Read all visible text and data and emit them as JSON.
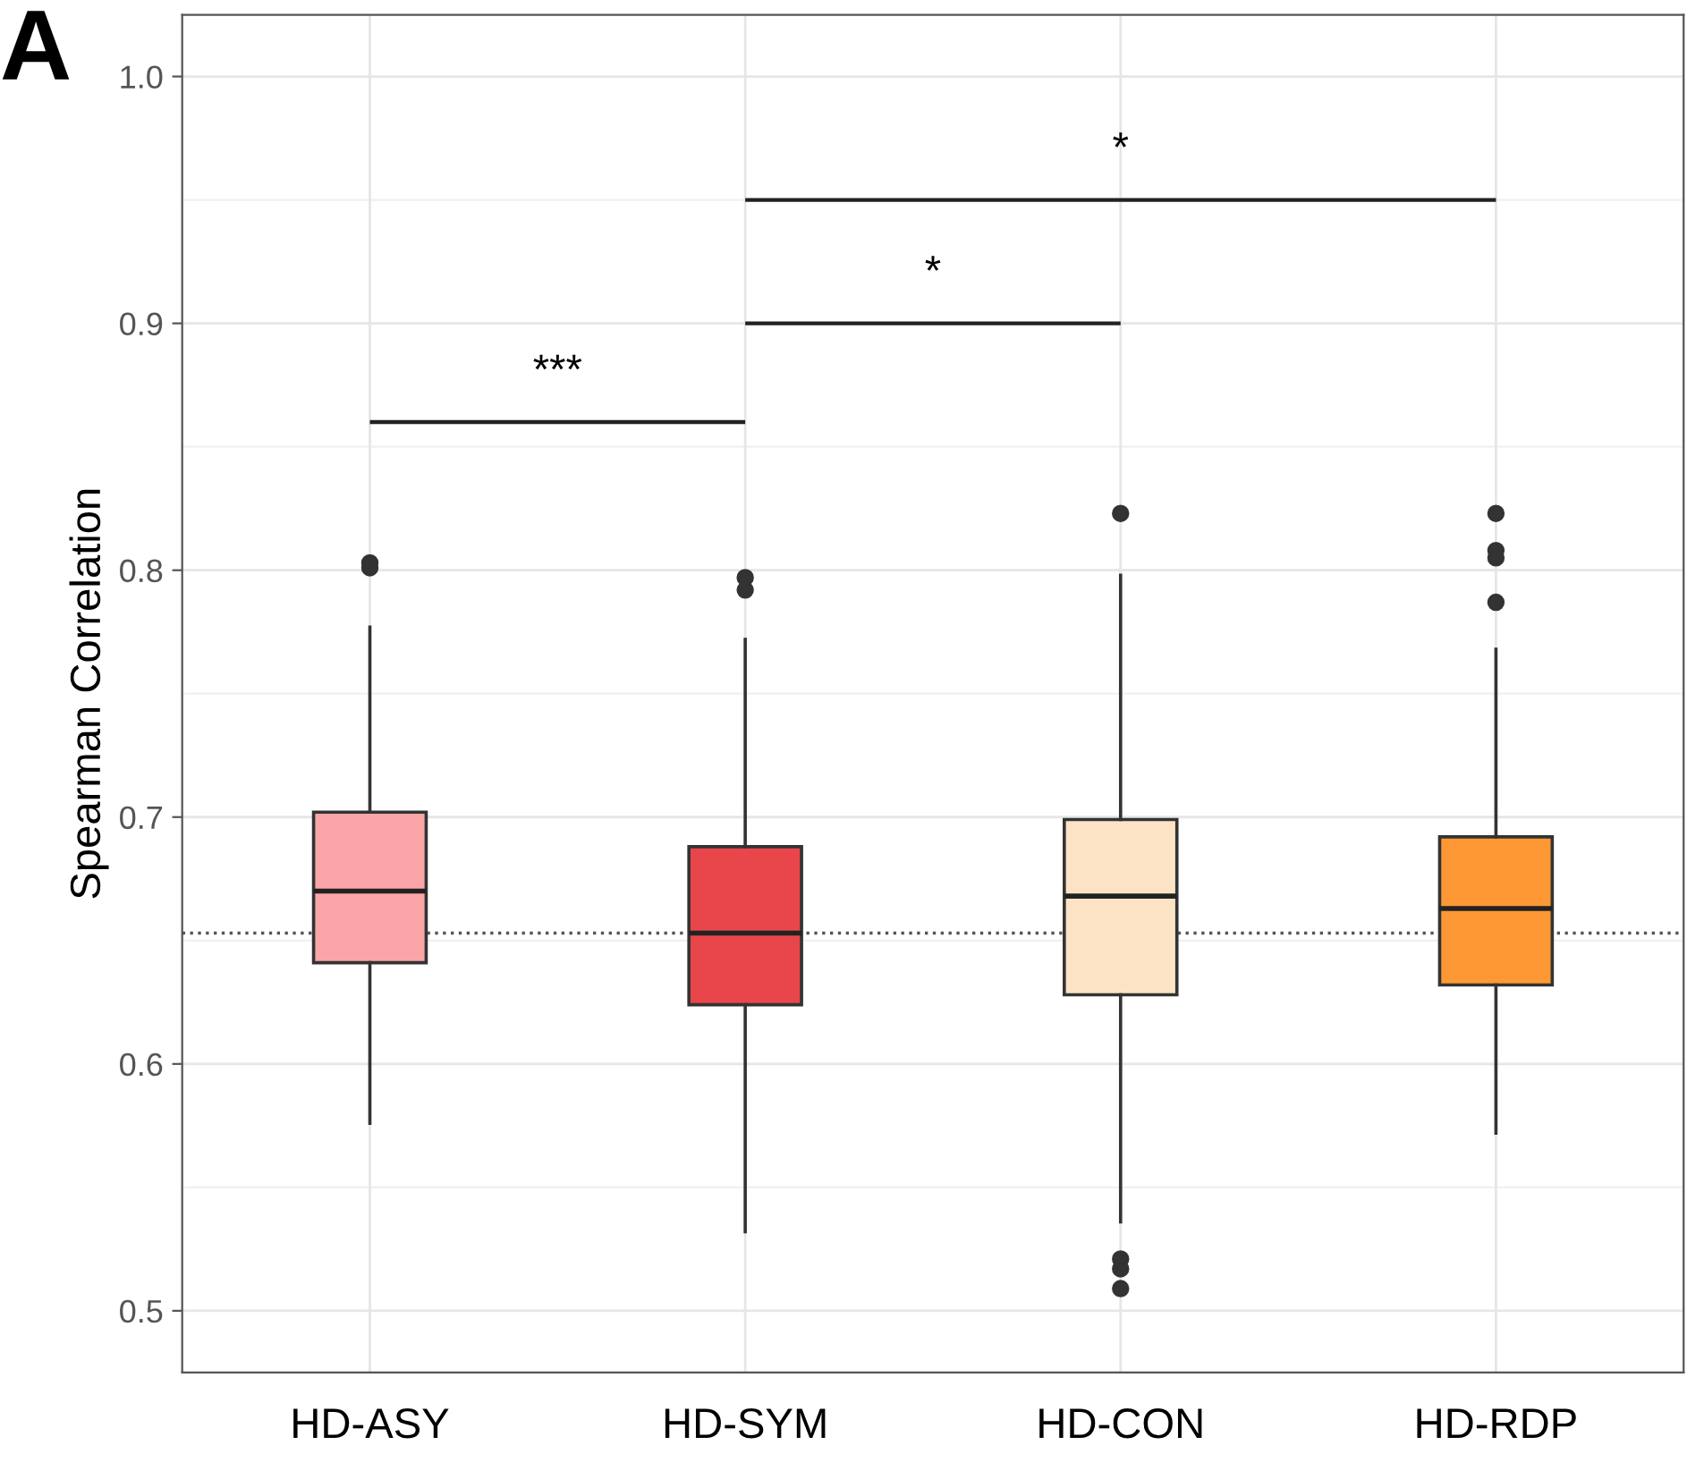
{
  "chart_data": {
    "type": "box",
    "ylabel": "Spearman Correlation",
    "categories": [
      "HD-ASY",
      "HD-SYM",
      "HD-CON",
      "HD-RDP"
    ],
    "colors": [
      "#fca5a8",
      "#e8464b",
      "#fde3c6",
      "#fd9834"
    ],
    "boxes": [
      {
        "low": 0.576,
        "q1": 0.641,
        "median": 0.67,
        "q3": 0.702,
        "high": 0.777,
        "outliers": [
          0.801,
          0.803
        ]
      },
      {
        "low": 0.532,
        "q1": 0.624,
        "median": 0.653,
        "q3": 0.688,
        "high": 0.772,
        "outliers": [
          0.792,
          0.797
        ]
      },
      {
        "low": 0.536,
        "q1": 0.628,
        "median": 0.668,
        "q3": 0.699,
        "high": 0.798,
        "outliers": [
          0.823,
          0.521,
          0.517,
          0.509
        ]
      },
      {
        "low": 0.572,
        "q1": 0.632,
        "median": 0.663,
        "q3": 0.692,
        "high": 0.768,
        "outliers": [
          0.823,
          0.808,
          0.805,
          0.787
        ]
      }
    ],
    "ylim": [
      0.475,
      1.025
    ],
    "yticks": [
      0.5,
      0.6,
      0.7,
      0.8,
      0.9,
      {
        "value": 1,
        "label": "1.0"
      }
    ],
    "grid": true,
    "ref_lines": [
      {
        "axis": "y",
        "value": 0.653,
        "line_style": "dotted",
        "color": "#555555"
      }
    ],
    "annotations": [
      "A",
      "***",
      "*",
      "*"
    ]
  }
}
